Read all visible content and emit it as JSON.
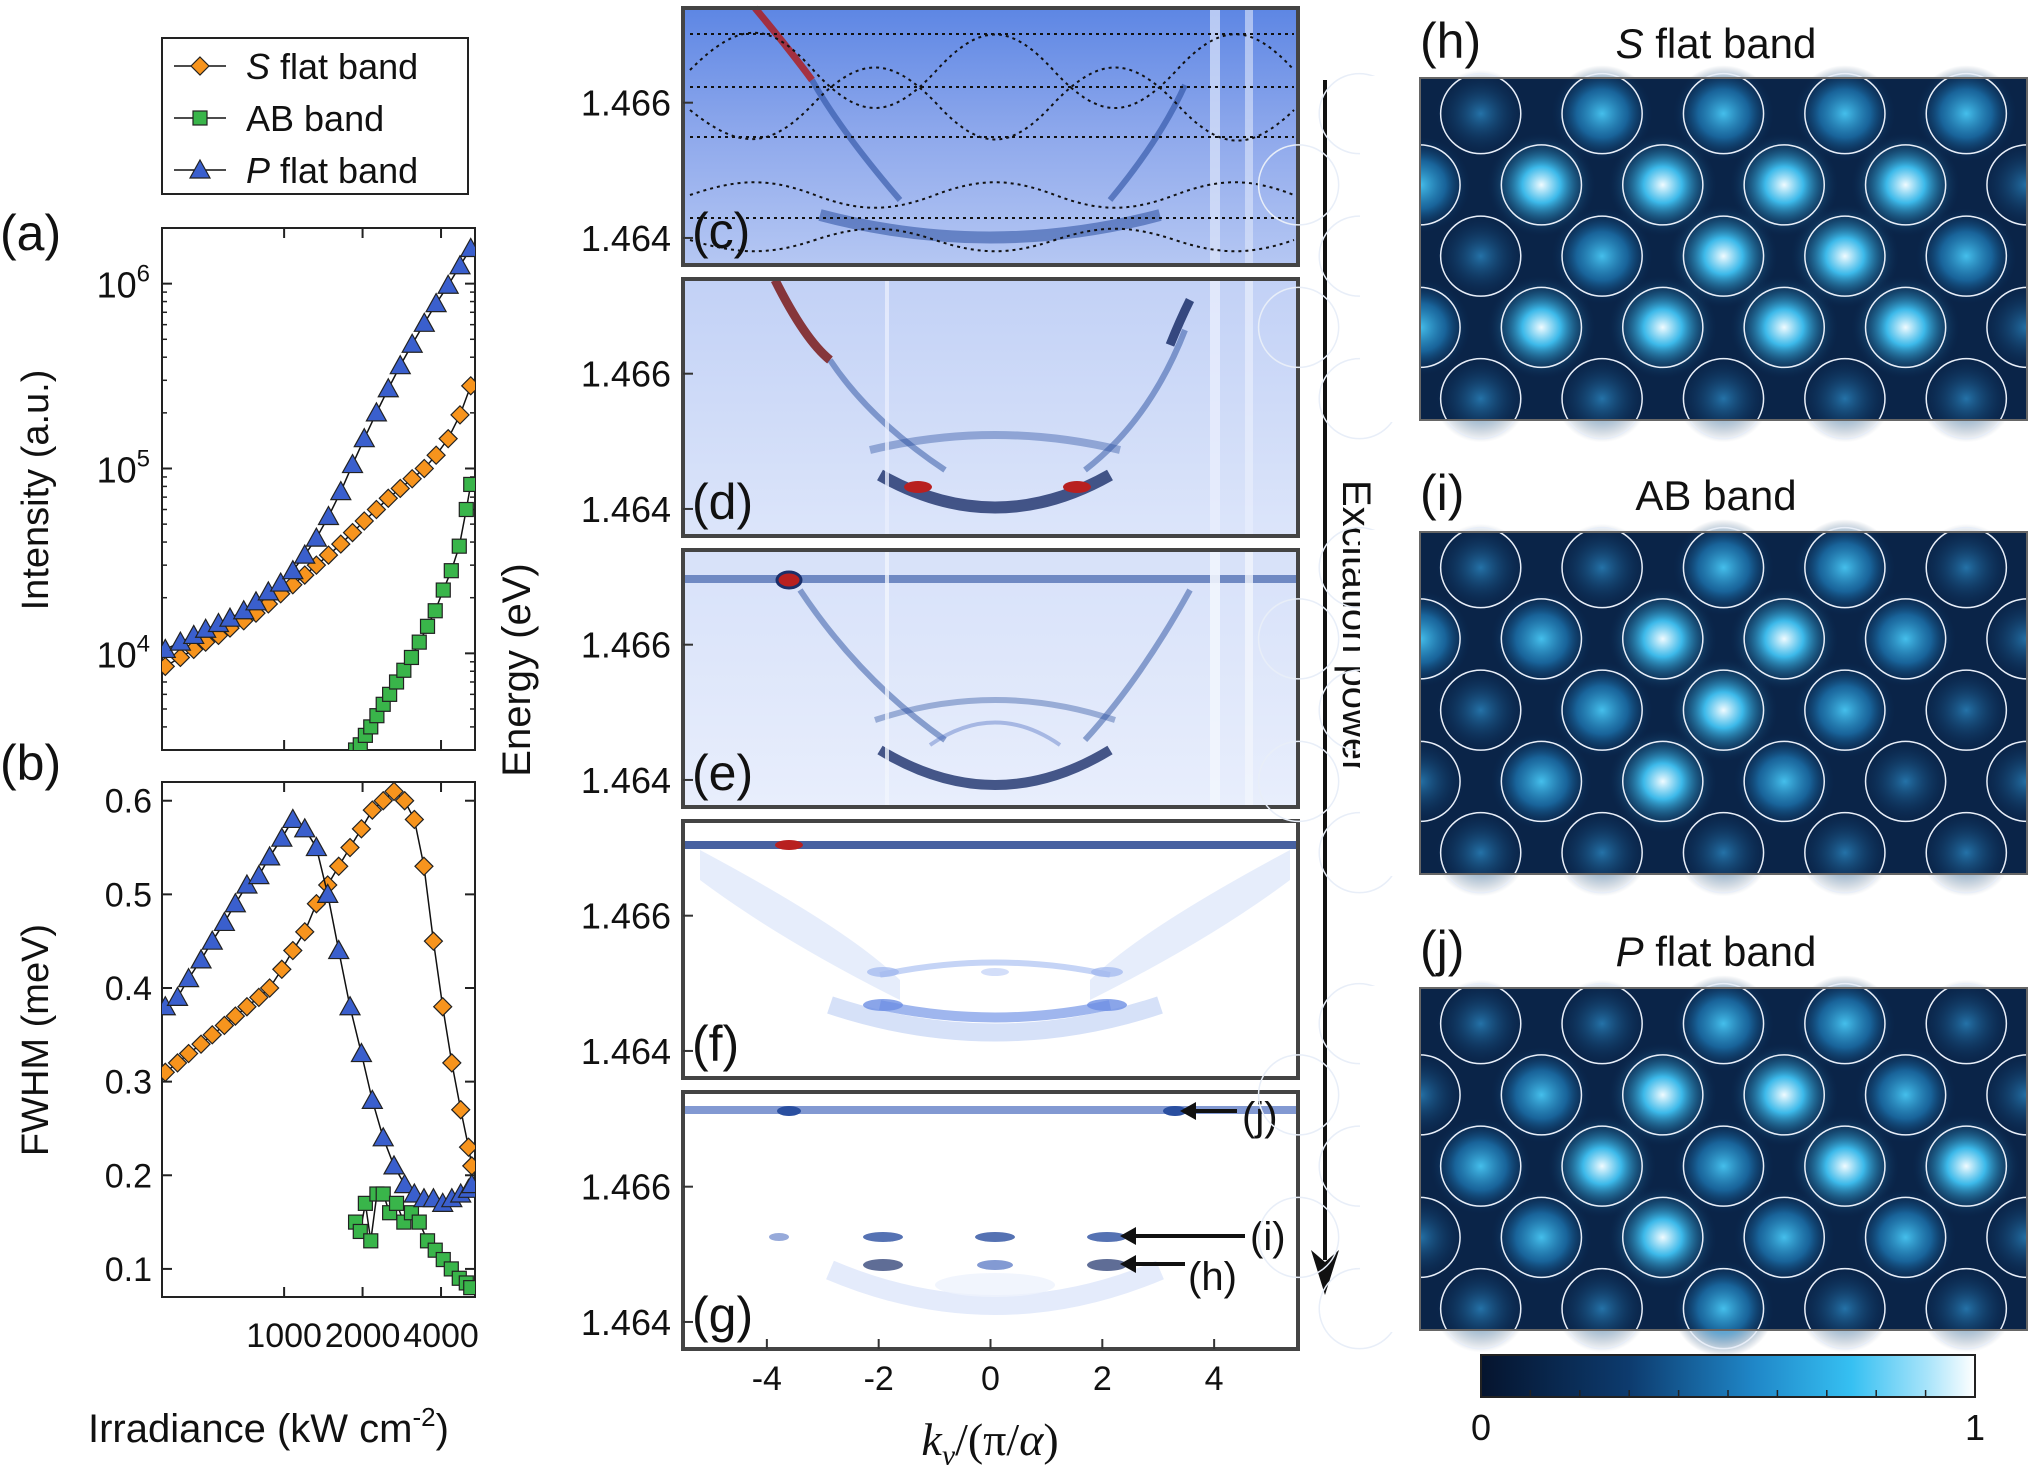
{
  "chart_data": [
    {
      "id": "a",
      "type": "scatter",
      "panel_label": "(a)",
      "title": "",
      "xlabel": "Irradiance (kW cm-2)",
      "xlabel_parts": {
        "base": "Irradiance (kW cm",
        "exp": "-2",
        "end": ")"
      },
      "ylabel": "Intensity (a.u.)",
      "xscale": "log",
      "yscale": "log",
      "xlim": [
        340,
        5400
      ],
      "ylim": [
        3000,
        2000000
      ],
      "yticks": [
        10000,
        100000,
        1000000
      ],
      "ytick_labels": [
        {
          "base": "10",
          "exp": "4"
        },
        {
          "base": "10",
          "exp": "5"
        },
        {
          "base": "10",
          "exp": "6"
        }
      ],
      "legend": {
        "position": "top-left",
        "entries": [
          {
            "name_italic": "S",
            "name_rest": " flat band",
            "color": "#F7941D",
            "marker": "diamond"
          },
          {
            "name_italic": "",
            "name_rest": "AB band",
            "color": "#39B54A",
            "marker": "square"
          },
          {
            "name_italic": "P",
            "name_rest": " flat band",
            "color": "#3A5FCD",
            "marker": "triangle"
          }
        ]
      },
      "series": [
        {
          "name": "S flat band",
          "color": "#F7941D",
          "marker": "diamond",
          "x": [
            350,
            400,
            450,
            500,
            560,
            620,
            700,
            780,
            870,
            970,
            1080,
            1200,
            1330,
            1480,
            1650,
            1830,
            2030,
            2260,
            2510,
            2790,
            3100,
            3450,
            3830,
            4260,
            4730,
            5200
          ],
          "y": [
            8500,
            9500,
            10500,
            11500,
            12500,
            13700,
            15000,
            16500,
            18500,
            21000,
            23500,
            26500,
            30000,
            34000,
            39000,
            45000,
            52000,
            60000,
            69000,
            78000,
            88000,
            100000,
            118000,
            145000,
            195000,
            280000
          ]
        },
        {
          "name": "AB band",
          "color": "#39B54A",
          "marker": "square",
          "x": [
            1880,
            1960,
            2050,
            2150,
            2270,
            2400,
            2540,
            2700,
            2880,
            3080,
            3300,
            3550,
            3800,
            4080,
            4380,
            4700,
            5000,
            5200
          ],
          "y": [
            3000,
            3200,
            3600,
            4000,
            4600,
            5300,
            6000,
            7000,
            8100,
            9500,
            11500,
            14000,
            17000,
            22000,
            28000,
            38000,
            60000,
            82000
          ]
        },
        {
          "name": "P flat band",
          "color": "#3A5FCD",
          "marker": "triangle",
          "x": [
            350,
            400,
            450,
            500,
            560,
            620,
            700,
            780,
            870,
            970,
            1080,
            1200,
            1330,
            1480,
            1650,
            1830,
            2030,
            2260,
            2510,
            2790,
            3100,
            3450,
            3830,
            4260,
            4730,
            5200
          ],
          "y": [
            10500,
            11500,
            12500,
            13500,
            14500,
            15500,
            17000,
            19000,
            21500,
            24000,
            28000,
            34000,
            42000,
            55000,
            75000,
            105000,
            145000,
            200000,
            270000,
            360000,
            470000,
            610000,
            780000,
            980000,
            1250000,
            1550000
          ]
        }
      ]
    },
    {
      "id": "b",
      "type": "scatter",
      "panel_label": "(b)",
      "xlabel": "Irradiance (kW cm-2)",
      "ylabel": "FWHM (meV)",
      "xscale": "log",
      "xlim": [
        340,
        5400
      ],
      "ylim": [
        0.07,
        0.62
      ],
      "xticks": [
        1000,
        2000,
        4000
      ],
      "xtick_labels": [
        "1000",
        "2000",
        "4000"
      ],
      "yticks": [
        0.1,
        0.2,
        0.3,
        0.4,
        0.5,
        0.6
      ],
      "ytick_labels": [
        "0.1",
        "0.2",
        "0.3",
        "0.4",
        "0.5",
        "0.6"
      ],
      "series": [
        {
          "name": "S flat band",
          "color": "#F7941D",
          "marker": "diamond",
          "x": [
            350,
            390,
            430,
            480,
            530,
            590,
            650,
            720,
            800,
            880,
            980,
            1080,
            1200,
            1330,
            1470,
            1620,
            1790,
            1980,
            2180,
            2400,
            2640,
            2900,
            3160,
            3440,
            3740,
            4060,
            4400,
            4760,
            5100,
            5250
          ],
          "y": [
            0.31,
            0.32,
            0.33,
            0.34,
            0.35,
            0.36,
            0.37,
            0.38,
            0.39,
            0.4,
            0.42,
            0.44,
            0.46,
            0.49,
            0.51,
            0.53,
            0.55,
            0.57,
            0.59,
            0.6,
            0.61,
            0.6,
            0.58,
            0.53,
            0.45,
            0.38,
            0.32,
            0.27,
            0.23,
            0.21
          ]
        },
        {
          "name": "AB band",
          "color": "#39B54A",
          "marker": "square",
          "x": [
            1880,
            1960,
            2050,
            2150,
            2270,
            2400,
            2540,
            2700,
            2880,
            3080,
            3300,
            3550,
            3800,
            4080,
            4380,
            4700,
            5000,
            5200
          ],
          "y": [
            0.15,
            0.14,
            0.17,
            0.13,
            0.18,
            0.18,
            0.16,
            0.17,
            0.15,
            0.16,
            0.15,
            0.13,
            0.12,
            0.11,
            0.1,
            0.09,
            0.085,
            0.08
          ]
        },
        {
          "name": "P flat band",
          "color": "#3A5FCD",
          "marker": "triangle",
          "x": [
            350,
            390,
            430,
            480,
            530,
            590,
            650,
            720,
            800,
            880,
            980,
            1080,
            1200,
            1330,
            1470,
            1620,
            1790,
            1980,
            2180,
            2400,
            2640,
            2900,
            3160,
            3440,
            3740,
            4060,
            4400,
            4760,
            5100,
            5250
          ],
          "y": [
            0.38,
            0.39,
            0.41,
            0.43,
            0.45,
            0.47,
            0.49,
            0.51,
            0.52,
            0.54,
            0.56,
            0.58,
            0.57,
            0.55,
            0.5,
            0.44,
            0.38,
            0.33,
            0.28,
            0.24,
            0.21,
            0.19,
            0.18,
            0.175,
            0.175,
            0.17,
            0.175,
            0.18,
            0.185,
            0.19
          ]
        }
      ]
    },
    {
      "id": "c-g",
      "type": "heatmap",
      "panel_labels": [
        "(c)",
        "(d)",
        "(e)",
        "(f)",
        "(g)"
      ],
      "xlabel": "ky/(π/α)",
      "ylabel": "Energy (eV)",
      "xlim": [
        -5.5,
        5.5
      ],
      "xticks": [
        -4,
        -2,
        0,
        2,
        4
      ],
      "xtick_labels": [
        "-4",
        "-2",
        "0",
        "2",
        "4"
      ],
      "ylim": [
        1.4636,
        1.4674
      ],
      "yticks": [
        1.466,
        1.464
      ],
      "ytick_labels": [
        "1.466",
        "1.464"
      ],
      "side_arrow_label": "Excitation power",
      "annotations": [
        {
          "text": "(j)",
          "energy": 1.4672,
          "ky": 3.5
        },
        {
          "text": "(i)",
          "energy": 1.4652,
          "ky": 2.2
        },
        {
          "text": "(h)",
          "energy": 1.4648,
          "ky": 2.2
        }
      ]
    },
    {
      "id": "h-j",
      "type": "heatmap",
      "panels": [
        {
          "label": "(h)",
          "title_italic": "S",
          "title_rest": " flat band"
        },
        {
          "label": "(i)",
          "title_italic": "",
          "title_rest": "AB band"
        },
        {
          "label": "(j)",
          "title_italic": "P",
          "title_rest": " flat band"
        }
      ],
      "colorbar": {
        "min": 0,
        "max": 1,
        "min_label": "0",
        "max_label": "1"
      }
    }
  ]
}
